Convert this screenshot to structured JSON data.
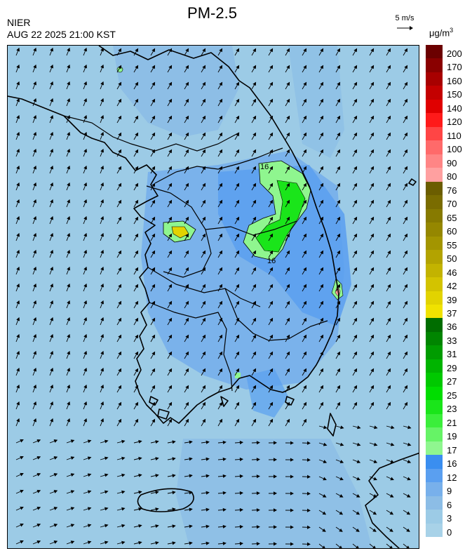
{
  "header": {
    "title": "PM-2.5",
    "agency": "NIER",
    "timestamp": "AUG 22 2025 21:00 KST",
    "wind_reference": "5 m/s",
    "unit_base": "μg/m",
    "unit_exp": "3"
  },
  "legend": {
    "levels": [
      {
        "label": "200",
        "color": "#6b0000"
      },
      {
        "label": "170",
        "color": "#8a0000"
      },
      {
        "label": "160",
        "color": "#a80000"
      },
      {
        "label": "150",
        "color": "#c40000"
      },
      {
        "label": "140",
        "color": "#e00000"
      },
      {
        "label": "120",
        "color": "#ff1a1a"
      },
      {
        "label": "110",
        "color": "#ff4545"
      },
      {
        "label": "100",
        "color": "#ff6a6a"
      },
      {
        "label": "90",
        "color": "#ff8585"
      },
      {
        "label": "80",
        "color": "#ffa0a0"
      },
      {
        "label": "76",
        "color": "#6b5d00"
      },
      {
        "label": "70",
        "color": "#7a6c00"
      },
      {
        "label": "65",
        "color": "#877a00"
      },
      {
        "label": "60",
        "color": "#958700"
      },
      {
        "label": "55",
        "color": "#a39500"
      },
      {
        "label": "50",
        "color": "#b3a300"
      },
      {
        "label": "46",
        "color": "#c3b300"
      },
      {
        "label": "42",
        "color": "#d3c300"
      },
      {
        "label": "39",
        "color": "#e2d300"
      },
      {
        "label": "37",
        "color": "#f0e200"
      },
      {
        "label": "36",
        "color": "#006d00"
      },
      {
        "label": "33",
        "color": "#008500"
      },
      {
        "label": "31",
        "color": "#009c00"
      },
      {
        "label": "29",
        "color": "#00b400"
      },
      {
        "label": "27",
        "color": "#00c900"
      },
      {
        "label": "25",
        "color": "#00dd00"
      },
      {
        "label": "23",
        "color": "#1ae51a"
      },
      {
        "label": "21",
        "color": "#3bee3b"
      },
      {
        "label": "19",
        "color": "#66f366"
      },
      {
        "label": "17",
        "color": "#8ff68f"
      },
      {
        "label": "16",
        "color": "#3a8ef0"
      },
      {
        "label": "12",
        "color": "#5a9ff0"
      },
      {
        "label": "9",
        "color": "#78b0eb"
      },
      {
        "label": "6",
        "color": "#8cbde6"
      },
      {
        "label": "3",
        "color": "#9ccbe6"
      },
      {
        "label": "0",
        "color": "#a8d2e8"
      }
    ]
  },
  "map": {
    "background_color": "#9ccbe6",
    "coastline_color": "#000000",
    "wind_vector_color": "#000000",
    "hotspot_colors": [
      "#66f366",
      "#00dd00",
      "#f0e200",
      "#c3b300",
      "#ff8585"
    ],
    "contour_labels": [
      "16",
      "16"
    ]
  }
}
